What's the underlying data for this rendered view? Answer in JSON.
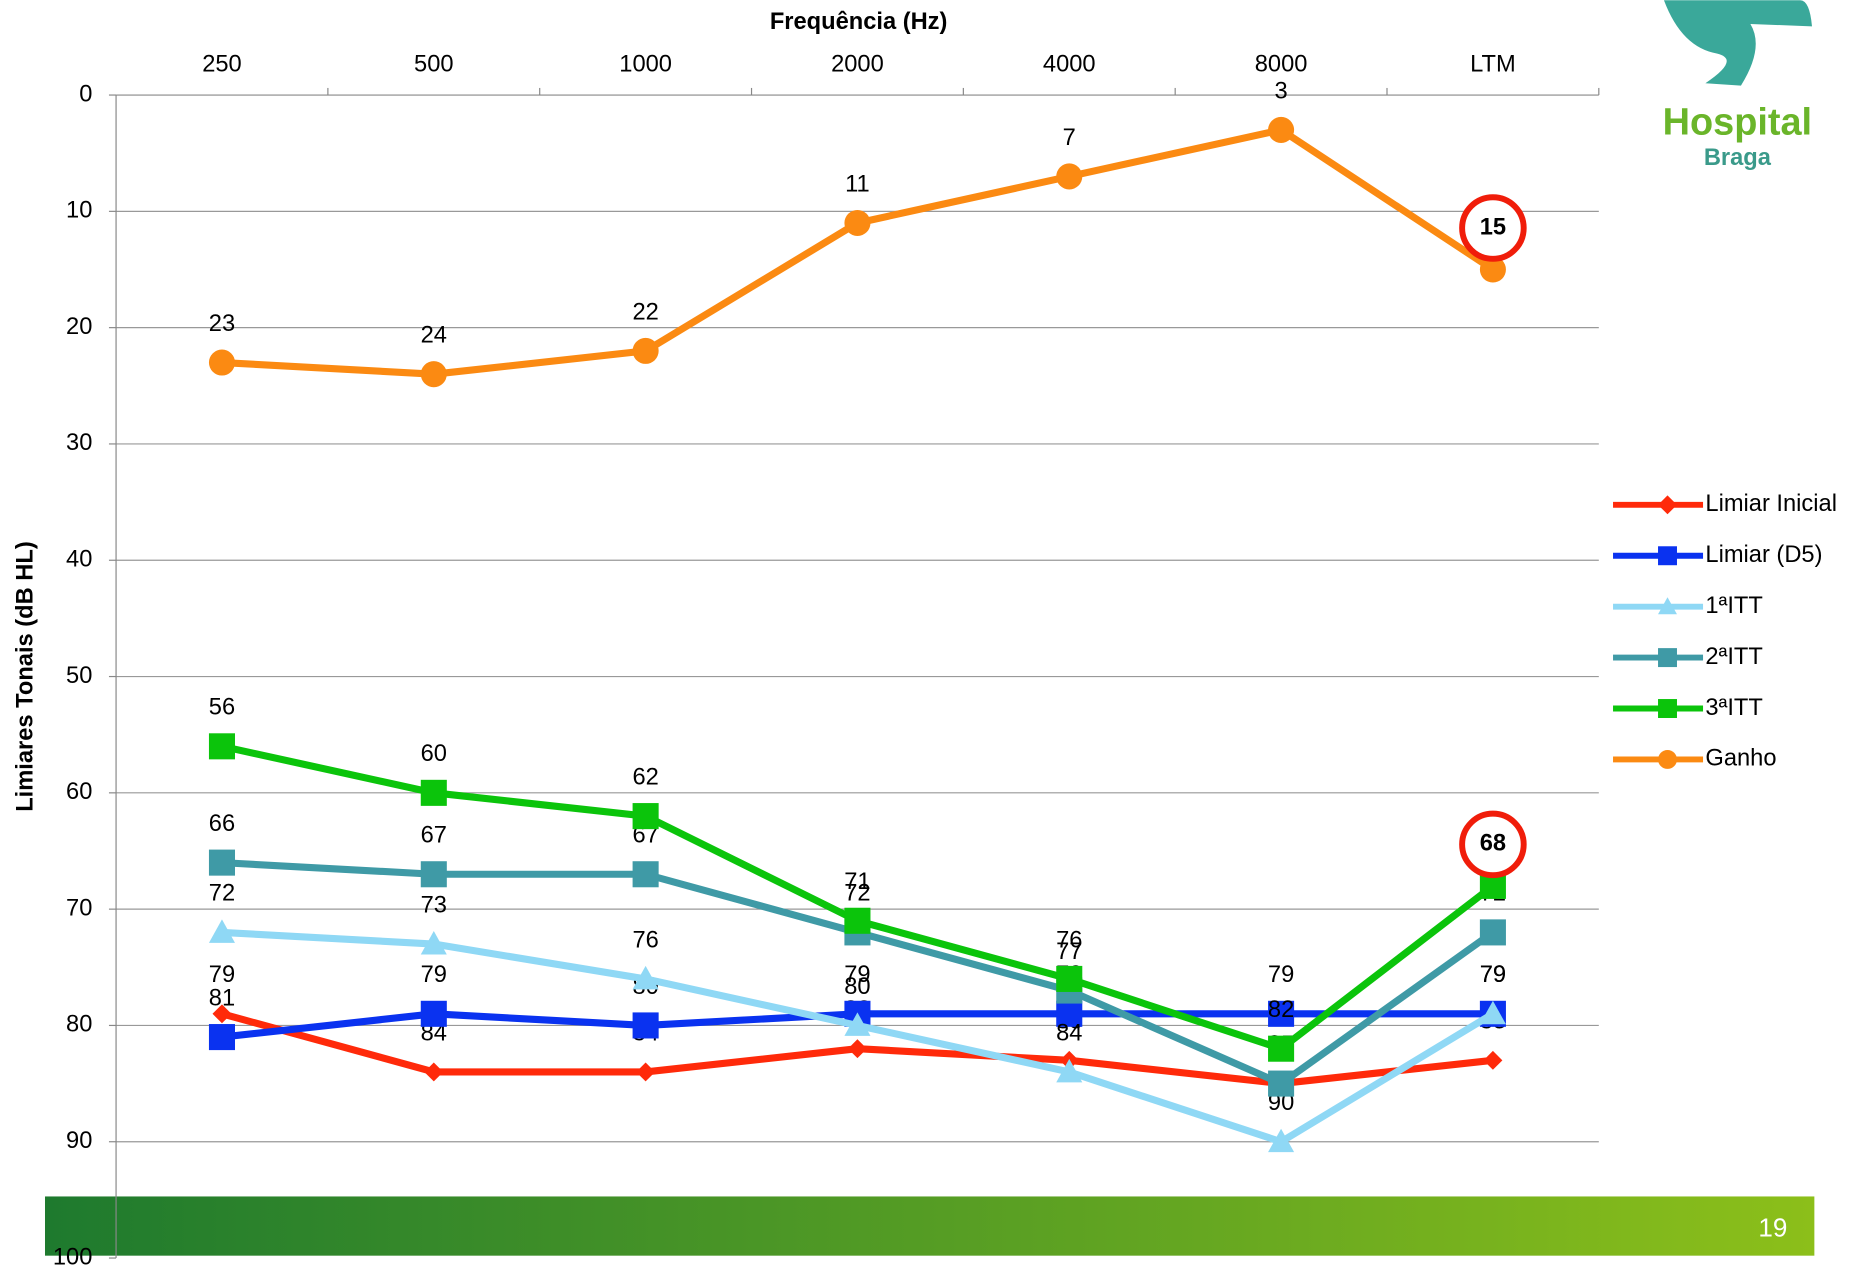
{
  "chart_data": {
    "type": "line",
    "x_label": "Frequência (Hz)",
    "y_label": "Limiares Tonais (dB HL)",
    "categories": [
      "250",
      "500",
      "1000",
      "2000",
      "4000",
      "8000",
      "LTM"
    ],
    "ylim": [
      0,
      100
    ],
    "y_reversed": true,
    "yticks": [
      0,
      10,
      20,
      30,
      40,
      50,
      60,
      70,
      80,
      90,
      100
    ],
    "grid": true,
    "legend": "right",
    "series": [
      {
        "name": "Limiar Inicial",
        "color": "#ff2a0a",
        "marker": "diamond",
        "values": [
          79,
          84,
          84,
          82,
          83,
          85,
          83
        ]
      },
      {
        "name": "Limiar (D5)",
        "color": "#0a32f0",
        "marker": "square",
        "values": [
          81,
          79,
          80,
          79,
          79,
          79,
          79
        ]
      },
      {
        "name": "1ªITT",
        "color": "#8fd8f5",
        "marker": "triangle",
        "values": [
          72,
          73,
          76,
          80,
          84,
          90,
          79
        ]
      },
      {
        "name": "2ªITT",
        "color": "#3f9aa6",
        "marker": "square",
        "values": [
          66,
          67,
          67,
          72,
          77,
          85,
          72
        ]
      },
      {
        "name": "3ªITT",
        "color": "#0bc40b",
        "marker": "square",
        "highlight_index": 6,
        "values": [
          56,
          60,
          62,
          71,
          76,
          82,
          68
        ]
      },
      {
        "name": "Ganho",
        "color": "#fb8a12",
        "marker": "circle",
        "highlight_index": 6,
        "values": [
          23,
          24,
          22,
          11,
          7,
          3,
          15
        ]
      }
    ]
  },
  "footer": {
    "page_number": "19"
  },
  "logo": {
    "name": "Hospital",
    "city": "Braga"
  }
}
